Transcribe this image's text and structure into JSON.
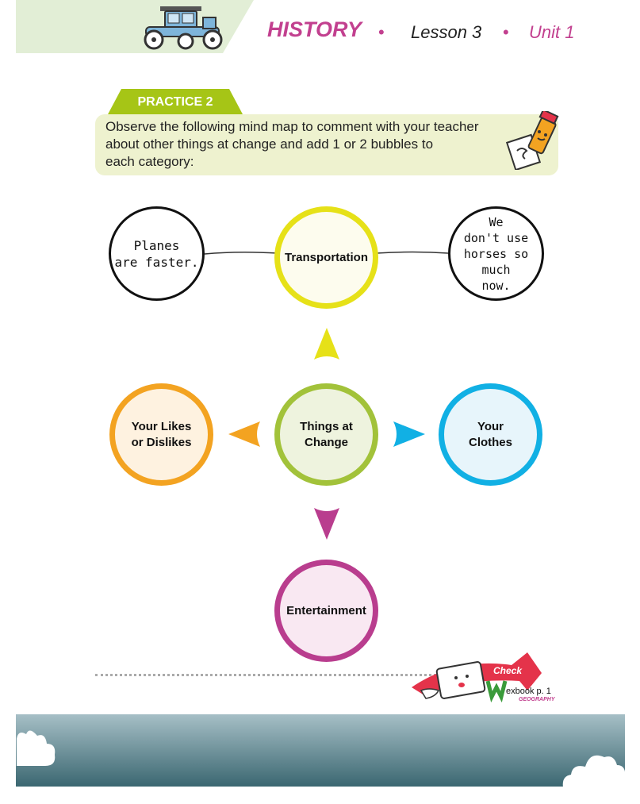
{
  "header": {
    "subject": "HISTORY",
    "separator": "•",
    "lesson": "Lesson 3",
    "unit": "Unit 1",
    "car_icon": "vintage-car-icon"
  },
  "practice": {
    "label": "PRACTICE 2",
    "instruction_lines": [
      "Observe the following mind map to comment with your teacher",
      "about other things at change and add 1 or 2 bubbles to",
      "each category:"
    ],
    "pencil_icon": "pencil-mascot-icon"
  },
  "mind_map": {
    "center": {
      "line1": "Things at",
      "line2": "Change",
      "color": "#a2c23a"
    },
    "transportation": {
      "label": "Transportation",
      "color": "#e6e118"
    },
    "likes": {
      "line1": "Your Likes",
      "line2": "or Dislikes",
      "color": "#f3a321"
    },
    "clothes": {
      "line1": "Your",
      "line2": "Clothes",
      "color": "#11b0e4"
    },
    "entertainment": {
      "label": "Entertainment",
      "color": "#b93d8e"
    },
    "example_left": {
      "lines": [
        "Planes",
        "are faster."
      ]
    },
    "example_right": {
      "lines": [
        "We",
        "don't use",
        "horses so",
        "much",
        "now."
      ]
    }
  },
  "footer": {
    "check_label": "Check",
    "textbook_ref": "exbook p. 1",
    "geography": "GEOGRAPHY"
  }
}
